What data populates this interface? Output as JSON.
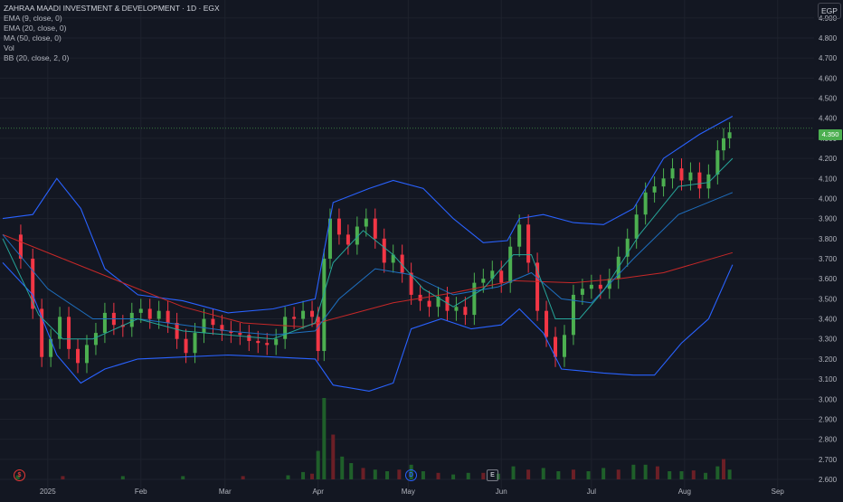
{
  "header": {
    "title": "ZAHRAA MAADI INVESTMENT & DEVELOPMENT · 1D · EGX",
    "indicators": [
      "EMA (9, close, 0)",
      "EMA (20, close, 0)",
      "MA (50, close, 0)",
      "Vol",
      "BB (20, close, 2, 0)"
    ]
  },
  "currency_label": "EGP",
  "last_price_label": "4.350",
  "markers": [
    {
      "icon": "dividend-icon",
      "glyph": "$",
      "color": "#e53935"
    },
    {
      "icon": "dividend-icon",
      "glyph": "D",
      "color": "#2962ff"
    },
    {
      "icon": "earnings-icon",
      "glyph": "E",
      "color": "#787b86"
    }
  ],
  "colors": {
    "up": "#4caf50",
    "down": "#f23645",
    "bb": "#2962ff",
    "ema9": "#26a69a",
    "ema20": "#1e6fbf",
    "ma50": "#c62828",
    "grid": "#1e222d",
    "axis_text": "#b2b5be",
    "bg": "#131722"
  },
  "chart_data": {
    "type": "candlestick",
    "title": "ZAHRAA MAADI INVESTMENT & DEVELOPMENT · 1D · EGX",
    "yaxis_ticks": [
      "4.900",
      "4.800",
      "4.700",
      "4.600",
      "4.500",
      "4.400",
      "4.300",
      "4.200",
      "4.100",
      "4.000",
      "3.900",
      "3.800",
      "3.700",
      "3.600",
      "3.500",
      "3.400",
      "3.300",
      "3.200",
      "3.100",
      "3.000",
      "2.900",
      "2.800",
      "2.700",
      "2.600"
    ],
    "ylim": [
      2.6,
      4.98
    ],
    "xaxis_labels": [
      {
        "label": "2025",
        "day": 15
      },
      {
        "label": "Feb",
        "day": 46
      },
      {
        "label": "Mar",
        "day": 74
      },
      {
        "label": "Apr",
        "day": 105
      },
      {
        "label": "May",
        "day": 135
      },
      {
        "label": "Jun",
        "day": 166
      },
      {
        "label": "Jul",
        "day": 196
      },
      {
        "label": "Aug",
        "day": 227
      },
      {
        "label": "Sep",
        "day": 258
      }
    ],
    "xlim": [
      0,
      265
    ],
    "last_price": 4.35,
    "closes": [
      [
        0,
        3.82
      ],
      [
        6,
        3.7
      ],
      [
        10,
        3.45
      ],
      [
        13,
        3.21
      ],
      [
        16,
        3.3
      ],
      [
        19,
        3.41
      ],
      [
        22,
        3.25
      ],
      [
        25,
        3.18
      ],
      [
        28,
        3.27
      ],
      [
        31,
        3.33
      ],
      [
        34,
        3.43
      ],
      [
        37,
        3.37
      ],
      [
        40,
        3.36
      ],
      [
        43,
        3.43
      ],
      [
        46,
        3.45
      ],
      [
        49,
        3.4
      ],
      [
        52,
        3.44
      ],
      [
        55,
        3.38
      ],
      [
        58,
        3.3
      ],
      [
        61,
        3.23
      ],
      [
        64,
        3.33
      ],
      [
        67,
        3.4
      ],
      [
        70,
        3.37
      ],
      [
        73,
        3.34
      ],
      [
        76,
        3.33
      ],
      [
        79,
        3.32
      ],
      [
        82,
        3.29
      ],
      [
        85,
        3.28
      ],
      [
        88,
        3.27
      ],
      [
        91,
        3.3
      ],
      [
        94,
        3.41
      ],
      [
        97,
        3.4
      ],
      [
        100,
        3.44
      ],
      [
        103,
        3.41
      ],
      [
        105,
        3.24
      ],
      [
        107,
        3.7
      ],
      [
        109,
        3.9
      ],
      [
        112,
        3.82
      ],
      [
        115,
        3.77
      ],
      [
        118,
        3.86
      ],
      [
        121,
        3.9
      ],
      [
        124,
        3.8
      ],
      [
        127,
        3.68
      ],
      [
        130,
        3.72
      ],
      [
        133,
        3.63
      ],
      [
        136,
        3.52
      ],
      [
        139,
        3.49
      ],
      [
        142,
        3.46
      ],
      [
        145,
        3.51
      ],
      [
        148,
        3.44
      ],
      [
        151,
        3.46
      ],
      [
        154,
        3.42
      ],
      [
        157,
        3.58
      ],
      [
        160,
        3.6
      ],
      [
        163,
        3.64
      ],
      [
        166,
        3.58
      ],
      [
        169,
        3.76
      ],
      [
        172,
        3.87
      ],
      [
        175,
        3.68
      ],
      [
        178,
        3.44
      ],
      [
        181,
        3.31
      ],
      [
        184,
        3.21
      ],
      [
        187,
        3.32
      ],
      [
        190,
        3.52
      ],
      [
        193,
        3.55
      ],
      [
        196,
        3.57
      ],
      [
        199,
        3.55
      ],
      [
        202,
        3.6
      ],
      [
        205,
        3.71
      ],
      [
        208,
        3.8
      ],
      [
        211,
        3.92
      ],
      [
        214,
        4.03
      ],
      [
        217,
        4.06
      ],
      [
        220,
        4.1
      ],
      [
        223,
        4.15
      ],
      [
        226,
        4.09
      ],
      [
        229,
        4.13
      ],
      [
        232,
        4.05
      ],
      [
        235,
        4.12
      ],
      [
        238,
        4.24
      ],
      [
        240,
        4.3
      ],
      [
        242,
        4.33
      ]
    ],
    "ema9": [
      [
        0,
        3.8
      ],
      [
        12,
        3.42
      ],
      [
        20,
        3.3
      ],
      [
        30,
        3.3
      ],
      [
        45,
        3.4
      ],
      [
        60,
        3.34
      ],
      [
        75,
        3.32
      ],
      [
        90,
        3.3
      ],
      [
        104,
        3.38
      ],
      [
        110,
        3.68
      ],
      [
        120,
        3.84
      ],
      [
        130,
        3.72
      ],
      [
        140,
        3.55
      ],
      [
        150,
        3.46
      ],
      [
        160,
        3.55
      ],
      [
        170,
        3.72
      ],
      [
        176,
        3.72
      ],
      [
        184,
        3.4
      ],
      [
        192,
        3.4
      ],
      [
        200,
        3.54
      ],
      [
        212,
        3.82
      ],
      [
        225,
        4.06
      ],
      [
        235,
        4.08
      ],
      [
        243,
        4.2
      ]
    ],
    "ema20": [
      [
        0,
        3.82
      ],
      [
        15,
        3.55
      ],
      [
        30,
        3.4
      ],
      [
        45,
        3.4
      ],
      [
        60,
        3.37
      ],
      [
        75,
        3.34
      ],
      [
        90,
        3.32
      ],
      [
        104,
        3.34
      ],
      [
        112,
        3.5
      ],
      [
        124,
        3.65
      ],
      [
        136,
        3.62
      ],
      [
        150,
        3.52
      ],
      [
        165,
        3.56
      ],
      [
        176,
        3.63
      ],
      [
        186,
        3.5
      ],
      [
        196,
        3.48
      ],
      [
        210,
        3.7
      ],
      [
        225,
        3.92
      ],
      [
        243,
        4.03
      ]
    ],
    "ma50": [
      [
        0,
        3.82
      ],
      [
        20,
        3.7
      ],
      [
        40,
        3.58
      ],
      [
        60,
        3.46
      ],
      [
        80,
        3.38
      ],
      [
        100,
        3.36
      ],
      [
        115,
        3.42
      ],
      [
        130,
        3.48
      ],
      [
        150,
        3.53
      ],
      [
        170,
        3.59
      ],
      [
        190,
        3.58
      ],
      [
        205,
        3.6
      ],
      [
        220,
        3.63
      ],
      [
        243,
        3.73
      ]
    ],
    "bb_upper": [
      [
        0,
        3.9
      ],
      [
        10,
        3.92
      ],
      [
        18,
        4.1
      ],
      [
        26,
        3.95
      ],
      [
        34,
        3.65
      ],
      [
        45,
        3.52
      ],
      [
        60,
        3.49
      ],
      [
        75,
        3.43
      ],
      [
        90,
        3.45
      ],
      [
        104,
        3.5
      ],
      [
        110,
        3.98
      ],
      [
        122,
        4.05
      ],
      [
        130,
        4.09
      ],
      [
        140,
        4.05
      ],
      [
        150,
        3.9
      ],
      [
        160,
        3.78
      ],
      [
        168,
        3.79
      ],
      [
        172,
        3.9
      ],
      [
        180,
        3.92
      ],
      [
        190,
        3.88
      ],
      [
        200,
        3.87
      ],
      [
        210,
        3.95
      ],
      [
        220,
        4.2
      ],
      [
        232,
        4.32
      ],
      [
        243,
        4.41
      ]
    ],
    "bb_lower": [
      [
        0,
        3.68
      ],
      [
        10,
        3.52
      ],
      [
        18,
        3.22
      ],
      [
        26,
        3.08
      ],
      [
        34,
        3.15
      ],
      [
        45,
        3.2
      ],
      [
        60,
        3.21
      ],
      [
        75,
        3.22
      ],
      [
        90,
        3.21
      ],
      [
        104,
        3.2
      ],
      [
        110,
        3.07
      ],
      [
        122,
        3.04
      ],
      [
        130,
        3.08
      ],
      [
        136,
        3.35
      ],
      [
        146,
        3.4
      ],
      [
        156,
        3.35
      ],
      [
        166,
        3.37
      ],
      [
        172,
        3.45
      ],
      [
        180,
        3.33
      ],
      [
        186,
        3.15
      ],
      [
        200,
        3.13
      ],
      [
        210,
        3.12
      ],
      [
        217,
        3.12
      ],
      [
        226,
        3.28
      ],
      [
        235,
        3.4
      ],
      [
        243,
        3.67
      ]
    ],
    "volume": [
      [
        5,
        0.05
      ],
      [
        20,
        0.04
      ],
      [
        40,
        0.04
      ],
      [
        60,
        0.04
      ],
      [
        80,
        0.04
      ],
      [
        95,
        0.05
      ],
      [
        100,
        0.09
      ],
      [
        103,
        0.07
      ],
      [
        105,
        0.35
      ],
      [
        107,
        1.0
      ],
      [
        110,
        0.55
      ],
      [
        113,
        0.28
      ],
      [
        116,
        0.2
      ],
      [
        120,
        0.14
      ],
      [
        124,
        0.12
      ],
      [
        128,
        0.1
      ],
      [
        132,
        0.12
      ],
      [
        136,
        0.18
      ],
      [
        140,
        0.1
      ],
      [
        145,
        0.08
      ],
      [
        150,
        0.06
      ],
      [
        155,
        0.08
      ],
      [
        160,
        0.08
      ],
      [
        165,
        0.07
      ],
      [
        170,
        0.16
      ],
      [
        175,
        0.12
      ],
      [
        180,
        0.14
      ],
      [
        185,
        0.1
      ],
      [
        190,
        0.12
      ],
      [
        195,
        0.1
      ],
      [
        200,
        0.14
      ],
      [
        205,
        0.12
      ],
      [
        210,
        0.18
      ],
      [
        214,
        0.18
      ],
      [
        218,
        0.16
      ],
      [
        222,
        0.1
      ],
      [
        226,
        0.1
      ],
      [
        230,
        0.11
      ],
      [
        234,
        0.08
      ],
      [
        238,
        0.16
      ],
      [
        240,
        0.25
      ],
      [
        242,
        0.12
      ]
    ]
  }
}
